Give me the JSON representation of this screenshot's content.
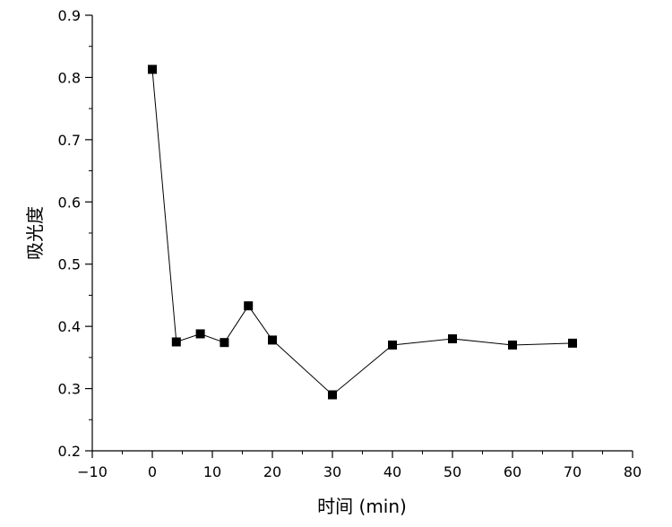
{
  "chart_data": {
    "type": "line",
    "xlabel": "时间 (min)",
    "ylabel": "吸光度",
    "xlim": [
      -10,
      80
    ],
    "ylim": [
      0.2,
      0.9
    ],
    "xticks": [
      -10,
      0,
      10,
      20,
      30,
      40,
      50,
      60,
      70,
      80
    ],
    "yticks": [
      0.2,
      0.3,
      0.4,
      0.5,
      0.6,
      0.7,
      0.8,
      0.9
    ],
    "xtick_labels": [
      "−10",
      "0",
      "10",
      "20",
      "30",
      "40",
      "50",
      "60",
      "70",
      "80"
    ],
    "ytick_labels": [
      "0.2",
      "0.3",
      "0.4",
      "0.5",
      "0.6",
      "0.7",
      "0.8",
      "0.9"
    ],
    "grid": false,
    "marker": "square",
    "color": "#000000",
    "series": [
      {
        "x": [
          0,
          4,
          8,
          12,
          16,
          20,
          30,
          40,
          50,
          60,
          70
        ],
        "y": [
          0.813,
          0.375,
          0.388,
          0.374,
          0.433,
          0.378,
          0.29,
          0.37,
          0.38,
          0.37,
          0.373
        ]
      }
    ]
  }
}
